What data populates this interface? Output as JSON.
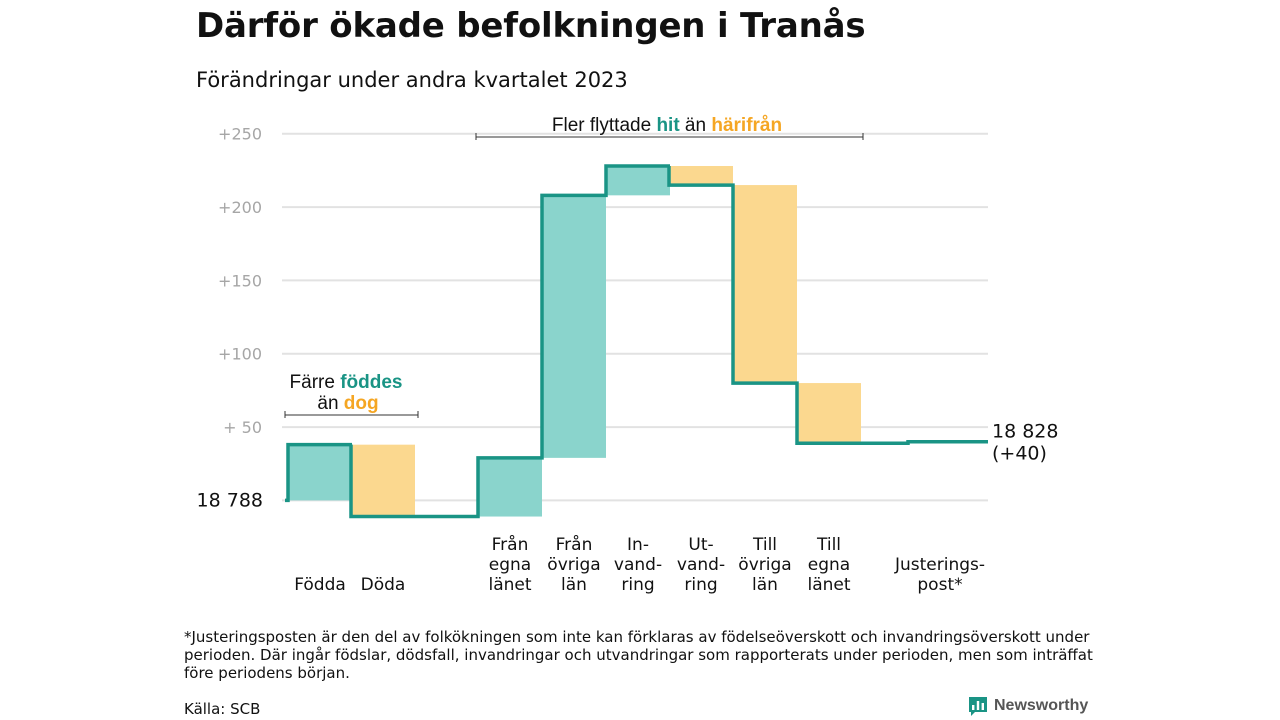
{
  "title": "Därför ökade befolkningen i Tranås",
  "subtitle": "Förändringar under andra kvartalet 2023",
  "chart_data": {
    "type": "waterfall",
    "start_value": 18788,
    "start_label": "18  788",
    "end_value": 18828,
    "end_label_line1": "18 828",
    "end_label_line2": "(+40)",
    "y_ticks": [
      {
        "value": 50,
        "label": "+  50"
      },
      {
        "value": 100,
        "label": "+100"
      },
      {
        "value": 150,
        "label": "+150"
      },
      {
        "value": 200,
        "label": "+200"
      },
      {
        "value": 250,
        "label": "+250"
      }
    ],
    "ylim": [
      -12,
      258
    ],
    "steps": [
      {
        "label_lines": [
          "Födda"
        ],
        "delta": 38,
        "color": "increase"
      },
      {
        "label_lines": [
          "Döda"
        ],
        "delta": -49,
        "color": "decrease"
      },
      {
        "label_lines": [
          "Från",
          "egna",
          "länet"
        ],
        "delta": 40,
        "color": "increase"
      },
      {
        "label_lines": [
          "Från",
          "övriga",
          "län"
        ],
        "delta": 179,
        "color": "increase"
      },
      {
        "label_lines": [
          "In-",
          "vand-",
          "ring"
        ],
        "delta": 20,
        "color": "increase"
      },
      {
        "label_lines": [
          "Ut-",
          "vand-",
          "ring"
        ],
        "delta": -13,
        "color": "decrease"
      },
      {
        "label_lines": [
          "Till",
          "övriga",
          "län"
        ],
        "delta": -135,
        "color": "decrease"
      },
      {
        "label_lines": [
          "Till",
          "egna",
          "länet"
        ],
        "delta": -41,
        "color": "decrease"
      },
      {
        "label_lines": [
          "Justerings-",
          "post*"
        ],
        "delta": 1,
        "color": "increase"
      }
    ],
    "colors": {
      "increase": "#8ad4cc",
      "decrease": "#fbd88f",
      "line": "#1a9485"
    },
    "annotations": {
      "births": {
        "prefix": "Färre ",
        "highlight1": "föddes",
        "middle": "än ",
        "highlight2": "dog"
      },
      "migration": {
        "prefix": "Fler flyttade ",
        "highlight1": "hit",
        "middle": " än ",
        "highlight2": "härifrån"
      }
    }
  },
  "footnote": "*Justeringsposten är den del av folkökningen som inte kan förklaras av födelseöverskott och invandringsöverskott under perioden. Där ingår födslar, dödsfall, invandringar och utvandringar som rapporterats under perioden, men som inträffat före periodens början.",
  "source": "Källa: SCB",
  "brand": {
    "name": "Newsworthy"
  }
}
